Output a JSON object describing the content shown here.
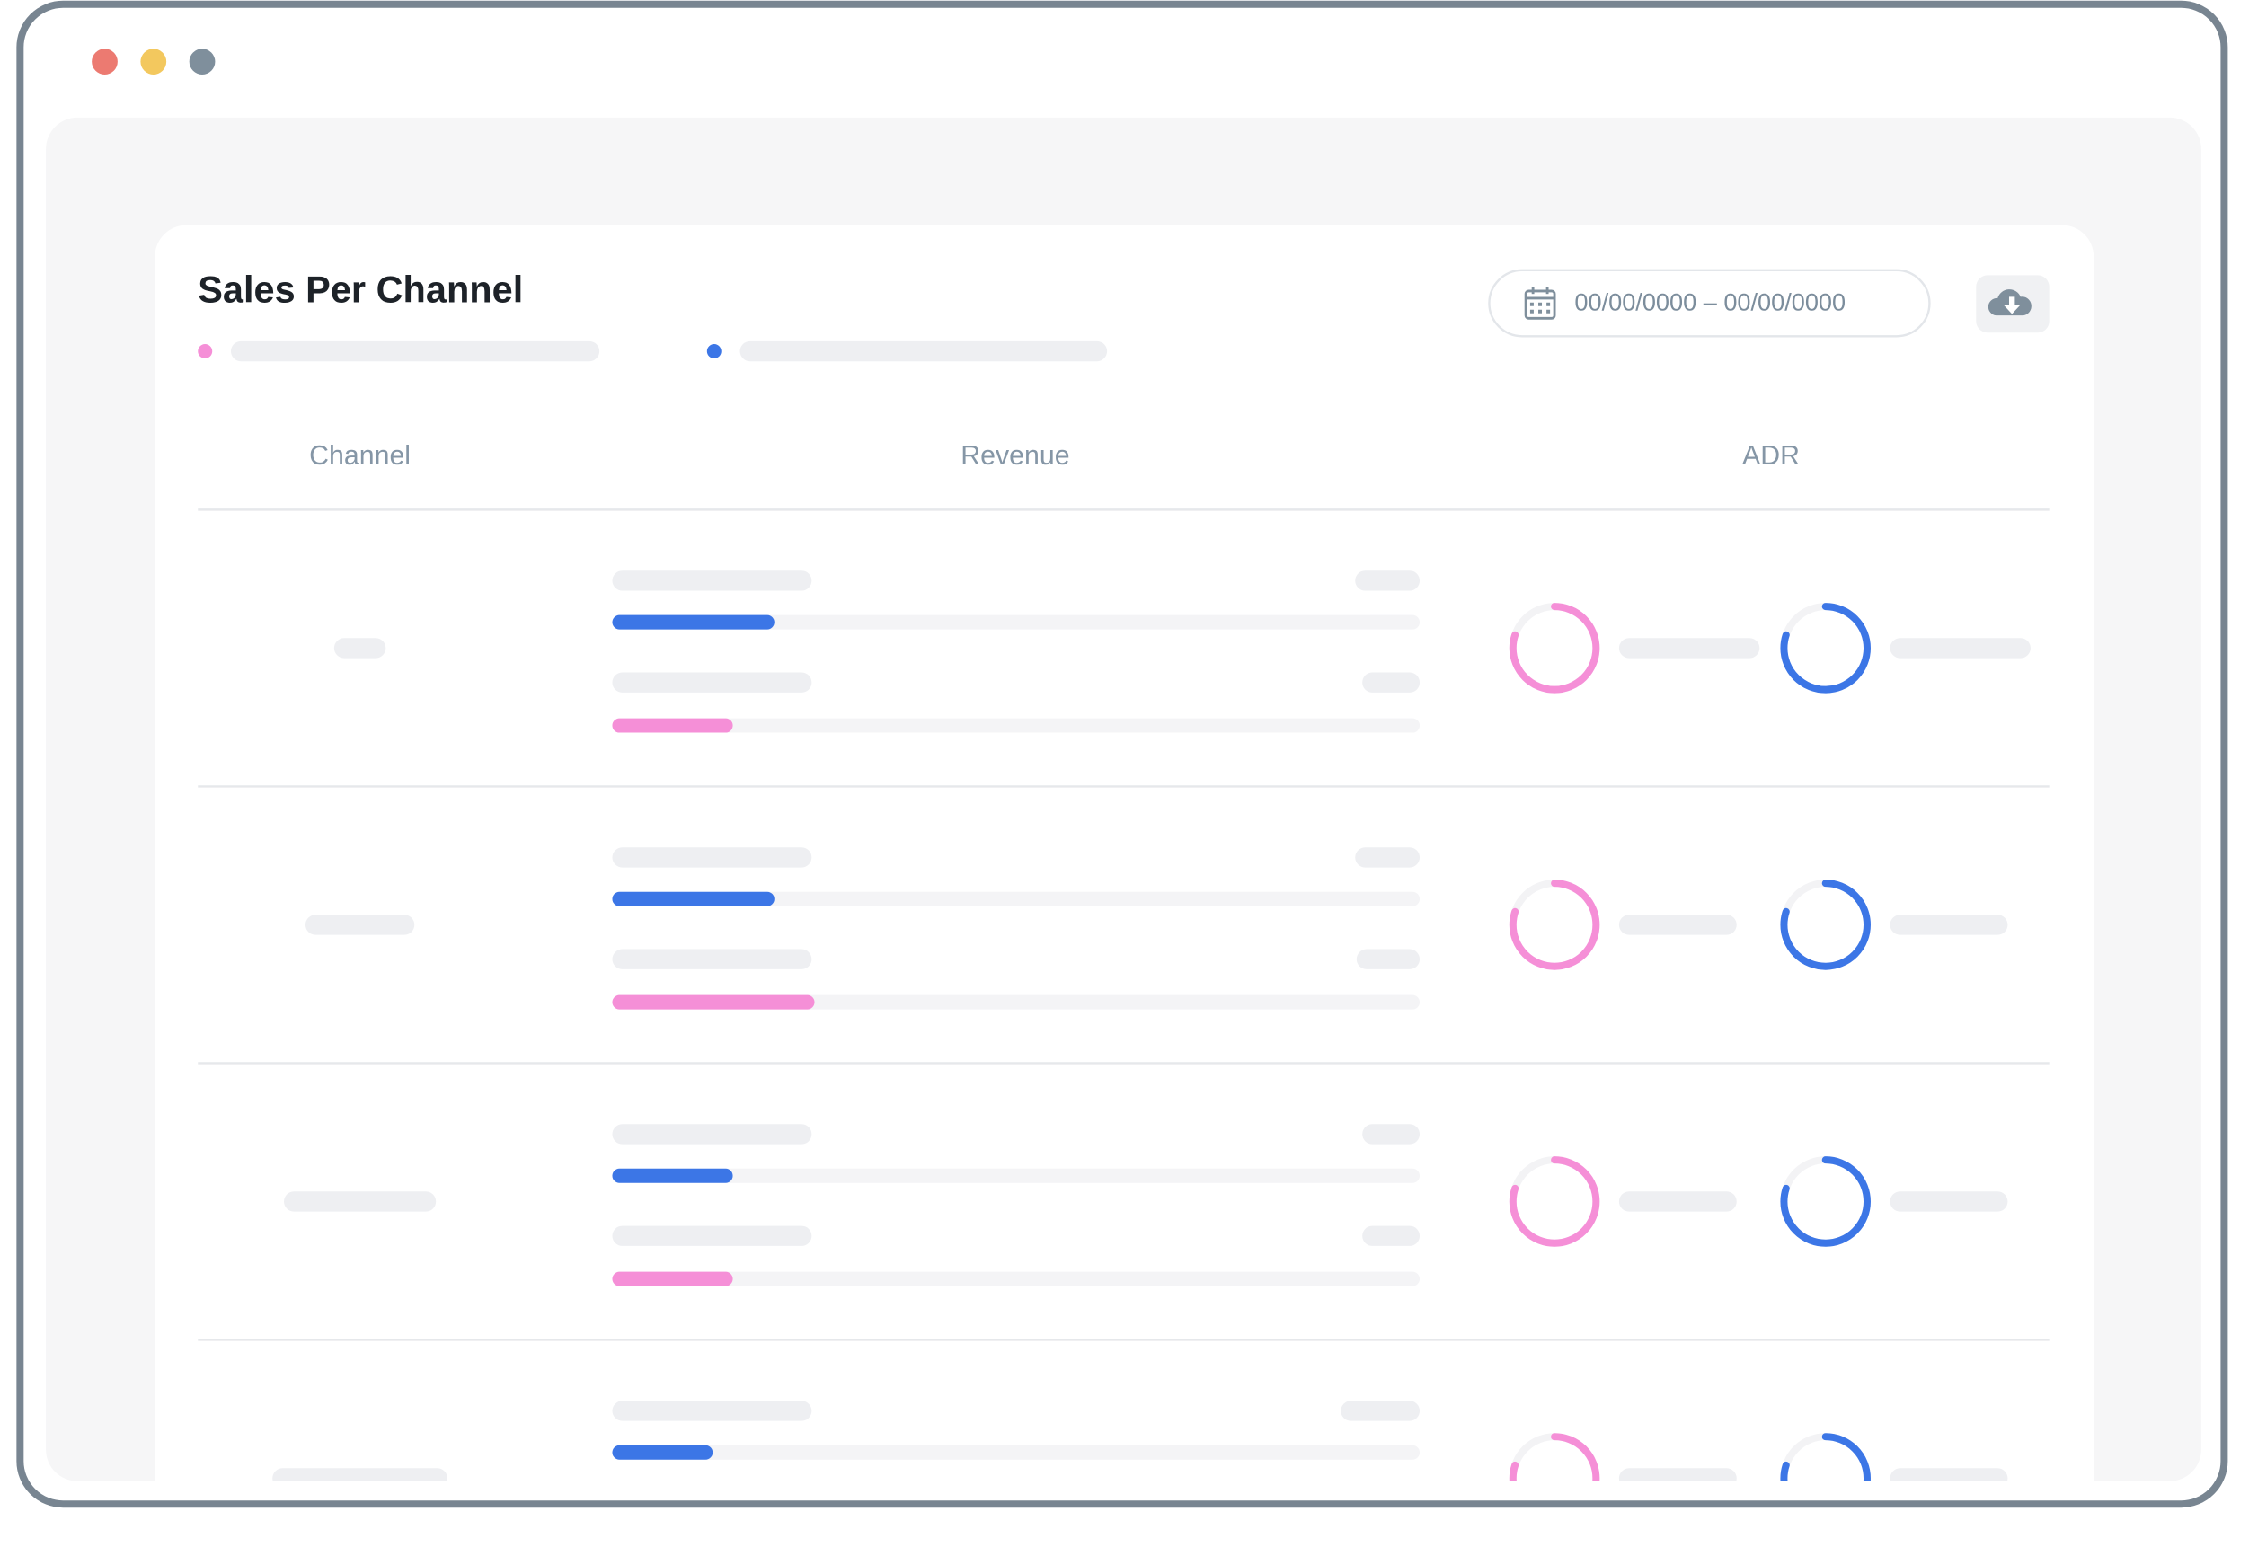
{
  "card": {
    "title": "Sales Per Channel",
    "date_range": "00/00/0000 – 00/00/0000"
  },
  "table": {
    "headers": [
      "Channel",
      "Revenue",
      "ADR"
    ]
  }
}
